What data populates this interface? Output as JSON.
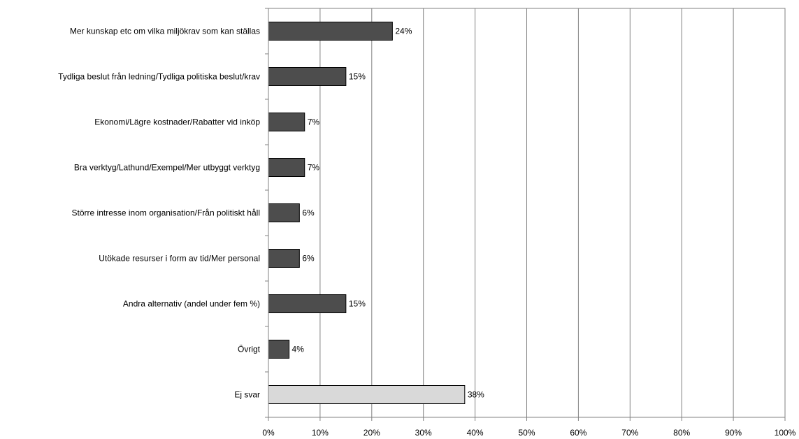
{
  "chart_data": {
    "type": "bar",
    "orientation": "horizontal",
    "categories": [
      "Mer kunskap etc om vilka miljökrav  som kan ställas",
      "Tydliga beslut från ledning/Tydliga politiska beslut/krav",
      "Ekonomi/Lägre kostnader/Rabatter vid inköp",
      "Bra verktyg/Lathund/Exempel/Mer utbyggt verktyg",
      "Större intresse inom organisation/Från politiskt håll",
      "Utökade resurser i form av tid/Mer personal",
      "Andra alternativ (andel under fem %)",
      "Övrigt",
      "Ej svar"
    ],
    "values": [
      24,
      15,
      7,
      7,
      6,
      6,
      15,
      4,
      38
    ],
    "value_labels": [
      "24%",
      "15%",
      "7%",
      "7%",
      "6%",
      "6%",
      "15%",
      "4%",
      "38%"
    ],
    "bar_colors": [
      "#4d4d4d",
      "#4d4d4d",
      "#4d4d4d",
      "#4d4d4d",
      "#4d4d4d",
      "#4d4d4d",
      "#4d4d4d",
      "#4d4d4d",
      "#d9d9d9"
    ],
    "xlim": [
      0,
      100
    ],
    "x_ticks": [
      "0%",
      "10%",
      "20%",
      "30%",
      "40%",
      "50%",
      "60%",
      "70%",
      "80%",
      "90%",
      "100%"
    ],
    "grid": "vertical",
    "title": "",
    "xlabel": "",
    "ylabel": ""
  }
}
